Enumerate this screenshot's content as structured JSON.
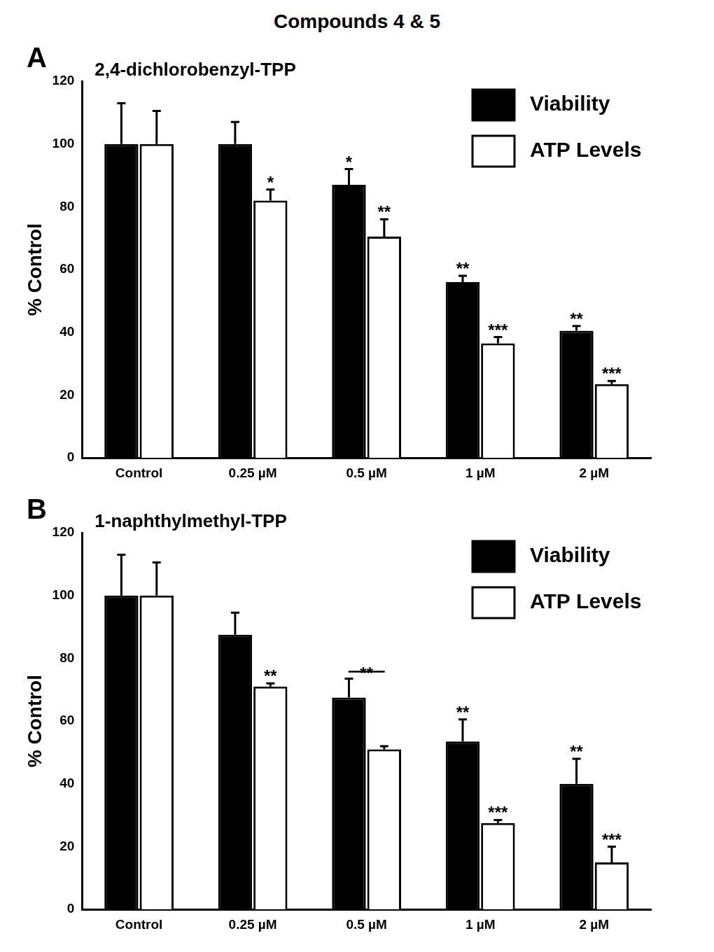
{
  "title": "Compounds 4 & 5",
  "chart_data": [
    {
      "type": "bar",
      "panel": "A",
      "title": "2,4-dichlorobenzyl-TPP",
      "y_label": "% Control",
      "categories": [
        "Control",
        "0.25 µM",
        "0.5 µM",
        "1 µM",
        "2 µM"
      ],
      "series": [
        {
          "name": "Viability",
          "color": "#000000",
          "values": [
            100,
            100,
            87,
            56,
            40.5
          ],
          "error": [
            13,
            7,
            5,
            2,
            1.5
          ],
          "significance": [
            null,
            null,
            "*",
            "**",
            "**"
          ]
        },
        {
          "name": "ATP Levels",
          "color": "#ffffff",
          "values": [
            100,
            82,
            70.5,
            36.5,
            23.5
          ],
          "error": [
            10.5,
            3.5,
            5.5,
            2,
            1
          ],
          "significance": [
            null,
            "*",
            "**",
            "***",
            "***"
          ]
        }
      ],
      "ylim": [
        0,
        120
      ],
      "yticks": [
        0,
        20,
        40,
        60,
        80,
        100,
        120
      ],
      "grid": false,
      "legend": "top-right"
    },
    {
      "type": "bar",
      "panel": "B",
      "title": "1-naphthylmethyl-TPP",
      "y_label": "% Control",
      "categories": [
        "Control",
        "0.25 µM",
        "0.5 µM",
        "1 µM",
        "2 µM"
      ],
      "series": [
        {
          "name": "Viability",
          "color": "#000000",
          "values": [
            100,
            87.5,
            67.5,
            53.5,
            40
          ],
          "error": [
            13,
            7,
            6,
            7,
            8
          ],
          "significance": [
            null,
            null,
            null,
            "**",
            "**"
          ]
        },
        {
          "name": "ATP Levels",
          "color": "#ffffff",
          "values": [
            100,
            71,
            51,
            27.5,
            15
          ],
          "error": [
            10.5,
            1,
            1,
            1,
            5
          ],
          "significance": [
            null,
            "**",
            null,
            "***",
            "***"
          ]
        }
      ],
      "group_significance": [
        null,
        null,
        "**",
        null,
        null
      ],
      "ylim": [
        0,
        120
      ],
      "yticks": [
        0,
        20,
        40,
        60,
        80,
        100,
        120
      ],
      "grid": false,
      "legend": "top-right"
    }
  ]
}
